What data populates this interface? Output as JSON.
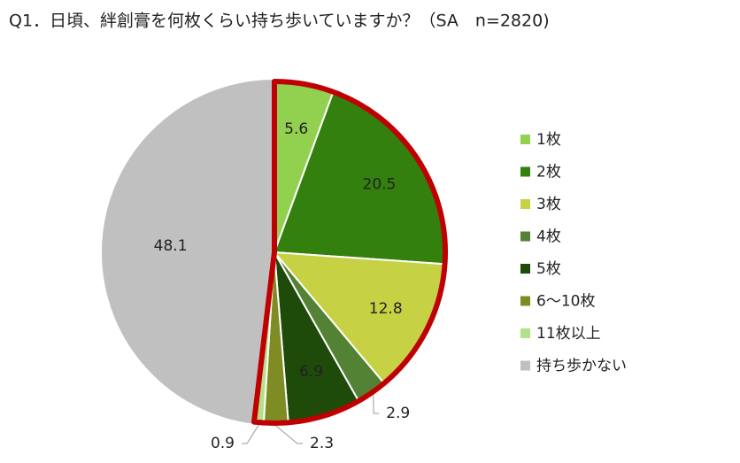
{
  "chart_data": {
    "type": "pie",
    "title": "Q1．日頃、絆創膏を何枚くらい持ち歩いていますか？（SA　n=2820)",
    "categories": [
      "1枚",
      "2枚",
      "3枚",
      "4枚",
      "5枚",
      "6～10枚",
      "11枚以上",
      "持ち歩かない"
    ],
    "values": [
      5.6,
      20.5,
      12.8,
      2.9,
      6.9,
      2.3,
      0.9,
      48.1
    ],
    "colors": [
      "#92d050",
      "#33800e",
      "#c6d143",
      "#548235",
      "#1e4a0a",
      "#7f8c24",
      "#b5e08a",
      "#c0c0c0"
    ],
    "highlight_color": "#c00000",
    "legend": "right"
  }
}
